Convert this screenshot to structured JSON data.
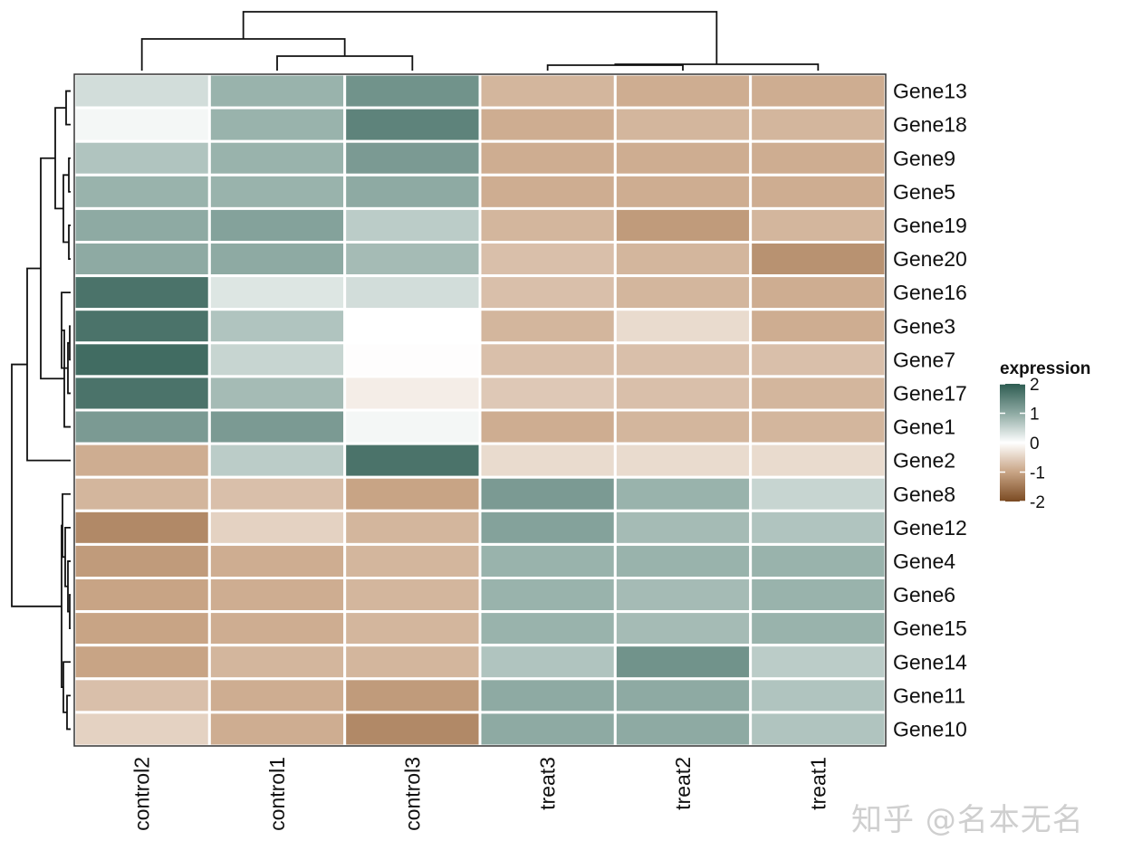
{
  "chart_data": {
    "type": "heatmap",
    "columns": [
      "control2",
      "control1",
      "control3",
      "treat3",
      "treat2",
      "treat1"
    ],
    "rows": [
      "Gene13",
      "Gene18",
      "Gene9",
      "Gene5",
      "Gene19",
      "Gene20",
      "Gene16",
      "Gene3",
      "Gene7",
      "Gene17",
      "Gene1",
      "Gene2",
      "Gene8",
      "Gene12",
      "Gene4",
      "Gene6",
      "Gene15",
      "Gene14",
      "Gene11",
      "Gene10"
    ],
    "values": [
      [
        0.4,
        0.9,
        1.3,
        -0.8,
        -0.9,
        -0.9
      ],
      [
        0.1,
        0.9,
        1.5,
        -0.9,
        -0.8,
        -0.8
      ],
      [
        0.7,
        0.9,
        1.2,
        -0.9,
        -0.9,
        -0.9
      ],
      [
        0.9,
        0.9,
        1.0,
        -0.9,
        -0.9,
        -0.9
      ],
      [
        1.0,
        1.1,
        0.6,
        -0.8,
        -1.1,
        -0.8
      ],
      [
        1.0,
        1.0,
        0.8,
        -0.7,
        -0.8,
        -1.2
      ],
      [
        1.7,
        0.3,
        0.4,
        -0.7,
        -0.8,
        -0.9
      ],
      [
        1.7,
        0.7,
        0.0,
        -0.8,
        -0.4,
        -0.9
      ],
      [
        1.8,
        0.5,
        -0.02,
        -0.7,
        -0.7,
        -0.7
      ],
      [
        1.7,
        0.8,
        -0.2,
        -0.6,
        -0.7,
        -0.8
      ],
      [
        1.2,
        1.2,
        0.1,
        -0.9,
        -0.8,
        -0.8
      ],
      [
        -0.9,
        0.6,
        1.7,
        -0.4,
        -0.4,
        -0.4
      ],
      [
        -0.8,
        -0.7,
        -1.0,
        1.2,
        0.9,
        0.5
      ],
      [
        -1.3,
        -0.5,
        -0.8,
        1.1,
        0.8,
        0.7
      ],
      [
        -1.1,
        -0.9,
        -0.8,
        0.9,
        0.9,
        0.9
      ],
      [
        -1.0,
        -0.9,
        -0.8,
        0.9,
        0.8,
        0.9
      ],
      [
        -1.0,
        -0.9,
        -0.8,
        0.9,
        0.8,
        0.9
      ],
      [
        -1.0,
        -0.8,
        -0.8,
        0.7,
        1.3,
        0.6
      ],
      [
        -0.7,
        -0.9,
        -1.1,
        1.0,
        1.0,
        0.7
      ],
      [
        -0.5,
        -0.9,
        -1.3,
        1.0,
        1.0,
        0.7
      ]
    ],
    "legend": {
      "title": "expression",
      "ticks": [
        "2",
        "1",
        "0",
        "-1",
        "-2"
      ],
      "range": [
        -2,
        2
      ],
      "placement": "right"
    },
    "color_scale": {
      "-2": "#7a4a22",
      "-1": "#c8a485",
      "0": "#ffffff",
      "1": "#8eaaa3",
      "2": "#2e5c52"
    },
    "cell_border_color": "#ffffff",
    "row_dendrogram": true,
    "column_dendrogram": true
  },
  "watermark": "知乎 @名本无名"
}
